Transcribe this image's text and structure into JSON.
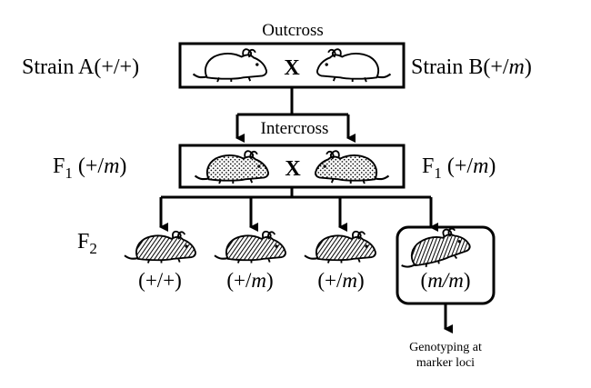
{
  "outcross": {
    "title": "Outcross",
    "left_label": "Strain A(+/+)",
    "right_label_prefix": "Strain B(+/",
    "right_label_italic": "m",
    "right_label_suffix": ")",
    "cross_symbol": "X"
  },
  "intercross": {
    "title": "Intercross",
    "left_f": "F",
    "left_sub": "1",
    "left_geno_prefix": " (+/",
    "left_geno_italic": "m",
    "left_geno_suffix": ")",
    "right_f": "F",
    "right_sub": "1",
    "right_geno_prefix": " (+/",
    "right_geno_italic": "m",
    "right_geno_suffix": ")",
    "cross_symbol": "X"
  },
  "f2": {
    "label_f": "F",
    "label_sub": "2",
    "genotypes": [
      {
        "prefix": "(+/+)",
        "italic": "",
        "suffix": ""
      },
      {
        "prefix": "(+/",
        "italic": "m",
        "suffix": ")"
      },
      {
        "prefix": "(+/",
        "italic": "m",
        "suffix": ")"
      },
      {
        "prefix": "(",
        "italic": "m/m",
        "suffix": ")"
      }
    ]
  },
  "genotyping": {
    "line1": "Genotyping at",
    "line2": "marker loci"
  },
  "icons": {
    "parent_mouse": "mouse-outline-icon",
    "f1_mouse": "mouse-stippled-icon",
    "f2_mouse": "mouse-hatched-icon"
  }
}
